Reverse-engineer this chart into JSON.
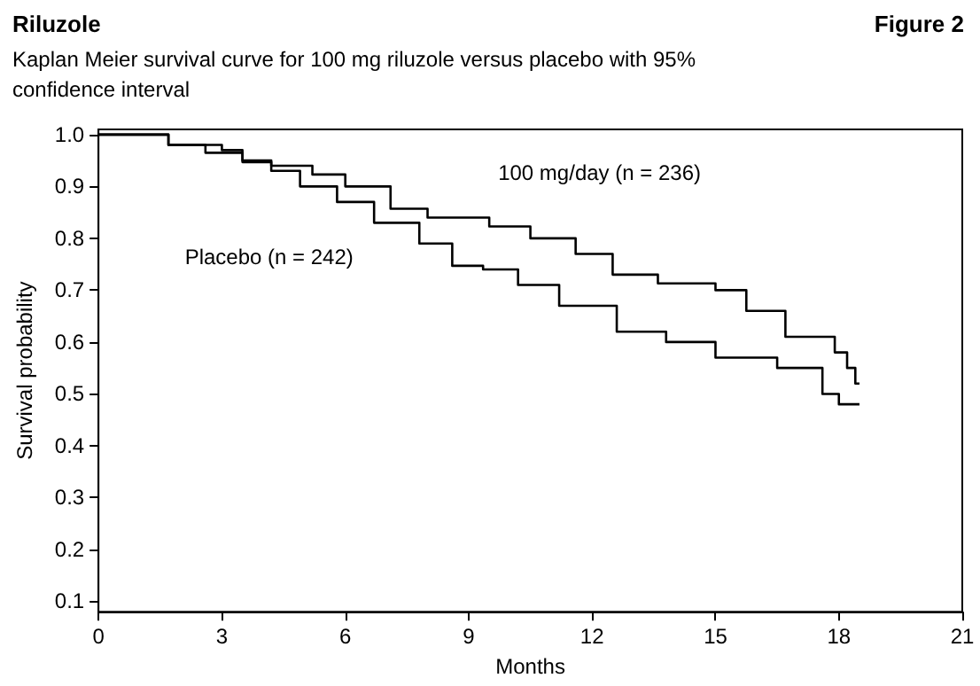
{
  "chart_data": {
    "type": "step",
    "title": "Riluzole",
    "subtitle": "Kaplan Meier survival curve for 100 mg riluzole versus placebo with 95% confidence interval",
    "xlabel": "Months",
    "ylabel": "Survival probability",
    "xlim": [
      0,
      21
    ],
    "xticks": [
      0,
      3,
      6,
      9,
      12,
      15,
      18,
      21
    ],
    "ylim": [
      0.08,
      1.01
    ],
    "yticks": [
      0.1,
      0.2,
      0.3,
      0.4,
      0.5,
      0.6,
      0.7,
      0.8,
      0.9,
      {
        "value": 1,
        "label": "1.0"
      }
    ],
    "grid": false,
    "legend": false,
    "marker": "none",
    "line_style": "solid",
    "series": [
      {
        "name": "100 mg/day (n = 236)",
        "color": "#000000",
        "x": [
          0,
          1.7,
          3.0,
          3.5,
          4.2,
          5.2,
          6.0,
          7.1,
          8.0,
          9.5,
          10.5,
          11.6,
          12.5,
          13.6,
          15.0,
          15.75,
          16.7,
          17.9,
          18.2,
          18.4,
          18.5
        ],
        "values": [
          1.0,
          0.98,
          0.97,
          0.95,
          0.94,
          0.923,
          0.9,
          0.857,
          0.84,
          0.823,
          0.8,
          0.77,
          0.73,
          0.713,
          0.7,
          0.66,
          0.61,
          0.58,
          0.55,
          0.52,
          0.52
        ]
      },
      {
        "name": "Placebo (n = 242)",
        "color": "#000000",
        "x": [
          0,
          1.7,
          2.6,
          3.5,
          4.2,
          4.9,
          5.8,
          6.7,
          7.8,
          8.6,
          9.35,
          10.2,
          11.2,
          12.6,
          13.8,
          15.0,
          16.5,
          17.6,
          18.0,
          18.5
        ],
        "values": [
          1.0,
          0.98,
          0.965,
          0.947,
          0.93,
          0.9,
          0.87,
          0.83,
          0.79,
          0.747,
          0.74,
          0.71,
          0.67,
          0.62,
          0.6,
          0.57,
          0.55,
          0.5,
          0.48,
          0.48
        ]
      }
    ],
    "annotations": [
      "Figure 2"
    ]
  }
}
